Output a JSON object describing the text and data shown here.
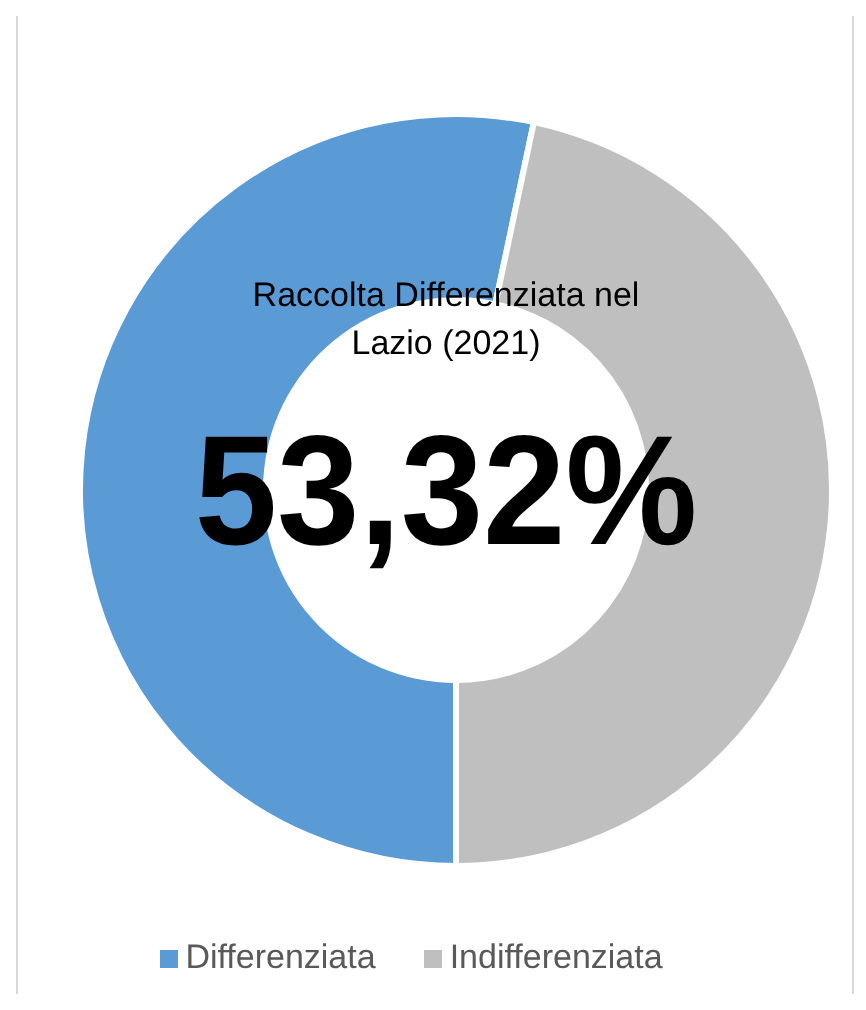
{
  "chart_data": {
    "type": "donut",
    "title": "Raccolta Differenziata nel Lazio (2021)",
    "annotations": [
      "53,32%"
    ],
    "categories": [
      "Differenziata",
      "Indifferenziata"
    ],
    "values": [
      53.32,
      46.68
    ],
    "colors": [
      "#5b9bd5",
      "#bfbfbf"
    ],
    "legend": "bottom"
  }
}
